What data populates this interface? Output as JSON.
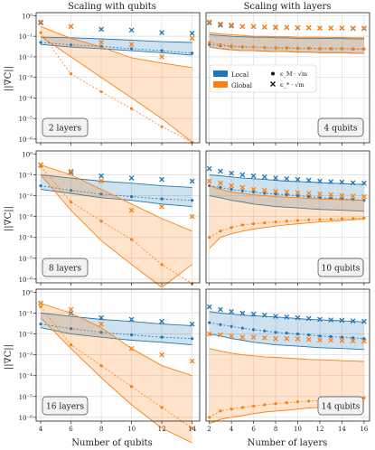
{
  "figure": {
    "col_titles": [
      "Scaling with qubits",
      "Scaling with layers"
    ],
    "ylabel": "||∇C||",
    "xlabels": [
      "Number of qubits",
      "Number of layers"
    ],
    "legend": {
      "series": [
        {
          "name": "Local",
          "color": "#1f77b4"
        },
        {
          "name": "Global",
          "color": "#ff7f0e"
        }
      ],
      "markers": [
        {
          "label": "ϵ_M · √m",
          "shape": "dot"
        },
        {
          "label": "ϵ_* · √m",
          "shape": "cross"
        }
      ]
    }
  },
  "chart_data": [
    {
      "type": "line",
      "panel": "row1-col1",
      "annotation": "2 layers",
      "x": [
        4,
        6,
        8,
        10,
        12,
        14
      ],
      "xlim": [
        3.7,
        14.5
      ],
      "yscale": "log",
      "ylim": [
        1e-06,
        1
      ],
      "xlabel": "",
      "ylabel": "||∇C||",
      "grid": true,
      "series": [
        {
          "name": "Local",
          "color": "#1f77b4",
          "band_low": [
            0.04,
            0.03,
            0.025,
            0.02,
            0.016,
            0.012
          ],
          "band_high": [
            0.09,
            0.085,
            0.075,
            0.065,
            0.055,
            0.05
          ],
          "dots": [
            0.05,
            0.038,
            0.032,
            0.025,
            0.02,
            0.015
          ],
          "crosses": [
            0.45,
            0.3,
            0.22,
            0.2,
            0.15,
            0.14
          ]
        },
        {
          "name": "Global",
          "color": "#ff7f0e",
          "band_low": [
            0.1,
            0.01,
            0.001,
            0.0001,
            1e-05,
            7e-07
          ],
          "band_high": [
            0.3,
            0.08,
            0.03,
            0.009,
            0.005,
            0.003
          ],
          "dots": [
            0.15,
            0.0015,
            0.0002,
            3e-05,
            4e-06,
            7e-07
          ],
          "crosses": [
            0.5,
            0.3,
            0.05,
            0.04,
            0.01,
            0.08
          ]
        }
      ]
    },
    {
      "type": "line",
      "panel": "row1-col2",
      "annotation": "4 qubits",
      "x": [
        2,
        3,
        4,
        5,
        6,
        7,
        8,
        9,
        10,
        11,
        12,
        13,
        14,
        15,
        16
      ],
      "xlim": [
        1.7,
        16.5
      ],
      "yscale": "log",
      "ylim": [
        1e-06,
        1
      ],
      "xlabel": "",
      "ylabel": "",
      "grid": true,
      "series": [
        {
          "name": "Local",
          "color": "#1f77b4",
          "band_low": [
            0.03,
            0.025,
            0.022,
            0.02,
            0.02,
            0.019,
            0.018,
            0.018,
            0.017,
            0.017,
            0.016,
            0.016,
            0.016,
            0.015,
            0.015
          ],
          "band_high": [
            0.12,
            0.11,
            0.1,
            0.095,
            0.09,
            0.09,
            0.085,
            0.085,
            0.08,
            0.08,
            0.08,
            0.078,
            0.077,
            0.076,
            0.075
          ],
          "dots": [
            0.04,
            0.035,
            0.032,
            0.03,
            0.03,
            0.028,
            0.027,
            0.027,
            0.026,
            0.026,
            0.025,
            0.025,
            0.025,
            0.024,
            0.024
          ],
          "crosses": [
            0.45,
            0.35,
            0.32,
            0.3,
            0.3,
            0.28,
            0.27,
            0.27,
            0.26,
            0.26,
            0.25,
            0.25,
            0.25,
            0.24,
            0.24
          ]
        },
        {
          "name": "Global",
          "color": "#ff7f0e",
          "band_low": [
            0.03,
            0.025,
            0.022,
            0.02,
            0.02,
            0.019,
            0.018,
            0.018,
            0.017,
            0.017,
            0.016,
            0.016,
            0.016,
            0.015,
            0.015
          ],
          "band_high": [
            0.15,
            0.13,
            0.12,
            0.11,
            0.1,
            0.1,
            0.095,
            0.095,
            0.09,
            0.09,
            0.09,
            0.088,
            0.087,
            0.086,
            0.085
          ],
          "dots": [
            0.05,
            0.04,
            0.035,
            0.032,
            0.03,
            0.029,
            0.028,
            0.028,
            0.027,
            0.027,
            0.026,
            0.026,
            0.026,
            0.025,
            0.025
          ],
          "crosses": [
            0.5,
            0.4,
            0.35,
            0.3,
            0.3,
            0.28,
            0.28,
            0.27,
            0.26,
            0.26,
            0.25,
            0.25,
            0.25,
            0.25,
            0.25
          ]
        }
      ]
    },
    {
      "type": "line",
      "panel": "row2-col1",
      "annotation": "8 layers",
      "x": [
        4,
        6,
        8,
        10,
        12,
        14
      ],
      "xlim": [
        3.7,
        14.5
      ],
      "yscale": "log",
      "ylim": [
        1e-06,
        1
      ],
      "xlabel": "",
      "ylabel": "||∇C||",
      "grid": true,
      "series": [
        {
          "name": "Local",
          "color": "#1f77b4",
          "band_low": [
            0.02,
            0.013,
            0.008,
            0.006,
            0.004,
            0.003
          ],
          "band_high": [
            0.1,
            0.07,
            0.05,
            0.04,
            0.03,
            0.025
          ],
          "dots": [
            0.03,
            0.018,
            0.012,
            0.009,
            0.007,
            0.006
          ],
          "crosses": [
            0.3,
            0.13,
            0.09,
            0.07,
            0.06,
            0.05
          ]
        },
        {
          "name": "Global",
          "color": "#ff7f0e",
          "band_low": [
            0.1,
            0.002,
            7e-05,
            5e-06,
            4e-07,
            5e-06
          ],
          "band_high": [
            0.3,
            0.1,
            0.02,
            0.004,
            0.0008,
            0.0002
          ],
          "dots": [
            0.25,
            0.005,
            0.0006,
            8e-05,
            5e-06,
            6e-07
          ],
          "crosses": [
            0.3,
            0.15,
            0.05,
            0.002,
            0.003,
            0.001
          ]
        }
      ]
    },
    {
      "type": "line",
      "panel": "row2-col2",
      "annotation": "10 qubits",
      "x": [
        2,
        3,
        4,
        5,
        6,
        7,
        8,
        9,
        10,
        11,
        12,
        13,
        14,
        15,
        16
      ],
      "xlim": [
        1.7,
        16.5
      ],
      "yscale": "log",
      "ylim": [
        1e-06,
        1
      ],
      "xlabel": "",
      "ylabel": "",
      "grid": true,
      "series": [
        {
          "name": "Local",
          "color": "#1f77b4",
          "band_low": [
            0.01,
            0.008,
            0.006,
            0.005,
            0.004,
            0.0035,
            0.003,
            0.0028,
            0.0026,
            0.0024,
            0.0022,
            0.0021,
            0.002,
            0.0019,
            0.0018
          ],
          "band_high": [
            0.1,
            0.09,
            0.08,
            0.07,
            0.065,
            0.06,
            0.055,
            0.05,
            0.048,
            0.045,
            0.043,
            0.04,
            0.038,
            0.036,
            0.035
          ],
          "dots": [
            0.03,
            0.025,
            0.02,
            0.017,
            0.015,
            0.013,
            0.012,
            0.011,
            0.01,
            0.009,
            0.008,
            0.0075,
            0.007,
            0.0065,
            0.006
          ],
          "crosses": [
            0.2,
            0.15,
            0.12,
            0.1,
            0.09,
            0.08,
            0.07,
            0.065,
            0.06,
            0.055,
            0.05,
            0.047,
            0.045,
            0.042,
            0.04
          ]
        },
        {
          "name": "Global",
          "color": "#ff7f0e",
          "band_low": [
            3e-05,
            0.0001,
            0.00015,
            0.0002,
            0.00025,
            0.0003,
            0.00035,
            0.0004,
            0.00045,
            0.0005,
            0.00055,
            0.0006,
            0.00065,
            0.0007,
            0.00075
          ],
          "band_high": [
            0.03,
            0.02,
            0.015,
            0.013,
            0.011,
            0.01,
            0.009,
            0.0085,
            0.008,
            0.0075,
            0.007,
            0.0068,
            0.0065,
            0.0062,
            0.006
          ],
          "dots": [
            0.0001,
            0.0002,
            0.0003,
            0.0004,
            0.00045,
            0.0005,
            0.00055,
            0.0006,
            0.00065,
            0.0007,
            0.00072,
            0.00075,
            0.00078,
            0.0008,
            0.00085
          ],
          "crosses": [
            0.05,
            0.04,
            0.03,
            0.025,
            0.02,
            0.018,
            0.016,
            0.015,
            0.014,
            0.013,
            0.012,
            0.011,
            0.01,
            0.0095,
            0.009
          ]
        }
      ]
    },
    {
      "type": "line",
      "panel": "row3-col1",
      "annotation": "16 layers",
      "x": [
        4,
        6,
        8,
        10,
        12,
        14
      ],
      "xlim": [
        3.7,
        14.5
      ],
      "yscale": "log",
      "ylim": [
        1e-06,
        1
      ],
      "xlabel": "Number of qubits",
      "ylabel": "||∇C||",
      "grid": true,
      "series": [
        {
          "name": "Local",
          "color": "#1f77b4",
          "band_low": [
            0.02,
            0.01,
            0.007,
            0.005,
            0.004,
            0.003
          ],
          "band_high": [
            0.1,
            0.07,
            0.05,
            0.04,
            0.03,
            0.025
          ],
          "dots": [
            0.03,
            0.018,
            0.012,
            0.009,
            0.007,
            0.006
          ],
          "crosses": [
            0.3,
            0.1,
            0.06,
            0.05,
            0.04,
            0.03
          ]
        },
        {
          "name": "Global",
          "color": "#ff7f0e",
          "band_low": [
            0.06,
            0.002,
            8e-05,
            4e-06,
            3e-07,
            6e-08
          ],
          "band_high": [
            0.3,
            0.1,
            0.02,
            0.002,
            0.0003,
            0.0001
          ],
          "dots": [
            0.2,
            0.003,
            0.0003,
            3e-05,
            3e-06,
            3e-07
          ],
          "crosses": [
            0.3,
            0.15,
            0.03,
            0.002,
            0.001,
            0.0005
          ]
        }
      ]
    },
    {
      "type": "line",
      "panel": "row3-col2",
      "annotation": "14 qubits",
      "x": [
        2,
        3,
        4,
        5,
        6,
        7,
        8,
        9,
        10,
        11,
        12,
        13,
        14,
        15,
        16
      ],
      "xlim": [
        1.7,
        16.5
      ],
      "yscale": "log",
      "ylim": [
        1e-06,
        1
      ],
      "xlabel": "Number of layers",
      "ylabel": "",
      "grid": true,
      "series": [
        {
          "name": "Local",
          "color": "#1f77b4",
          "band_low": [
            0.01,
            0.008,
            0.006,
            0.005,
            0.004,
            0.0035,
            0.003,
            0.0028,
            0.0026,
            0.0024,
            0.0022,
            0.0021,
            0.002,
            0.0019,
            0.0018
          ],
          "band_high": [
            0.12,
            0.1,
            0.09,
            0.08,
            0.075,
            0.07,
            0.065,
            0.06,
            0.055,
            0.05,
            0.048,
            0.045,
            0.043,
            0.04,
            0.038
          ],
          "dots": [
            0.035,
            0.028,
            0.023,
            0.019,
            0.016,
            0.014,
            0.012,
            0.011,
            0.01,
            0.009,
            0.008,
            0.0075,
            0.007,
            0.0065,
            0.006
          ],
          "crosses": [
            0.2,
            0.15,
            0.12,
            0.1,
            0.09,
            0.08,
            0.07,
            0.065,
            0.06,
            0.055,
            0.05,
            0.047,
            0.045,
            0.042,
            0.04
          ]
        },
        {
          "name": "Global",
          "color": "#ff7f0e",
          "band_low": [
            5e-07,
            8e-07,
            1e-06,
            1.2e-06,
            1.5e-06,
            1.8e-06,
            2e-06,
            2.2e-06,
            2.5e-06,
            2.8e-06,
            3e-06,
            3.2e-06,
            3.5e-06,
            3.8e-06,
            4e-06
          ],
          "band_high": [
            0.002,
            0.0015,
            0.0012,
            0.001,
            0.0009,
            0.0008,
            0.00075,
            0.0007,
            0.00065,
            0.0006,
            0.00058,
            0.00055,
            0.00052,
            0.0005,
            0.00048
          ],
          "dots": [
            1e-06,
            2e-06,
            2.5e-06,
            3e-06,
            3.5e-06,
            4e-06,
            4.5e-06,
            5e-06,
            5.5e-06,
            6e-06,
            6.5e-06,
            7e-06,
            7.5e-06,
            8e-06,
            8.5e-06
          ],
          "crosses": [
            0.01,
            0.009,
            0.008,
            0.007,
            0.007,
            0.0065,
            0.006,
            0.006,
            0.0058,
            0.0055,
            0.0052,
            0.005,
            0.0048,
            0.0046,
            0.0045
          ]
        }
      ]
    }
  ]
}
